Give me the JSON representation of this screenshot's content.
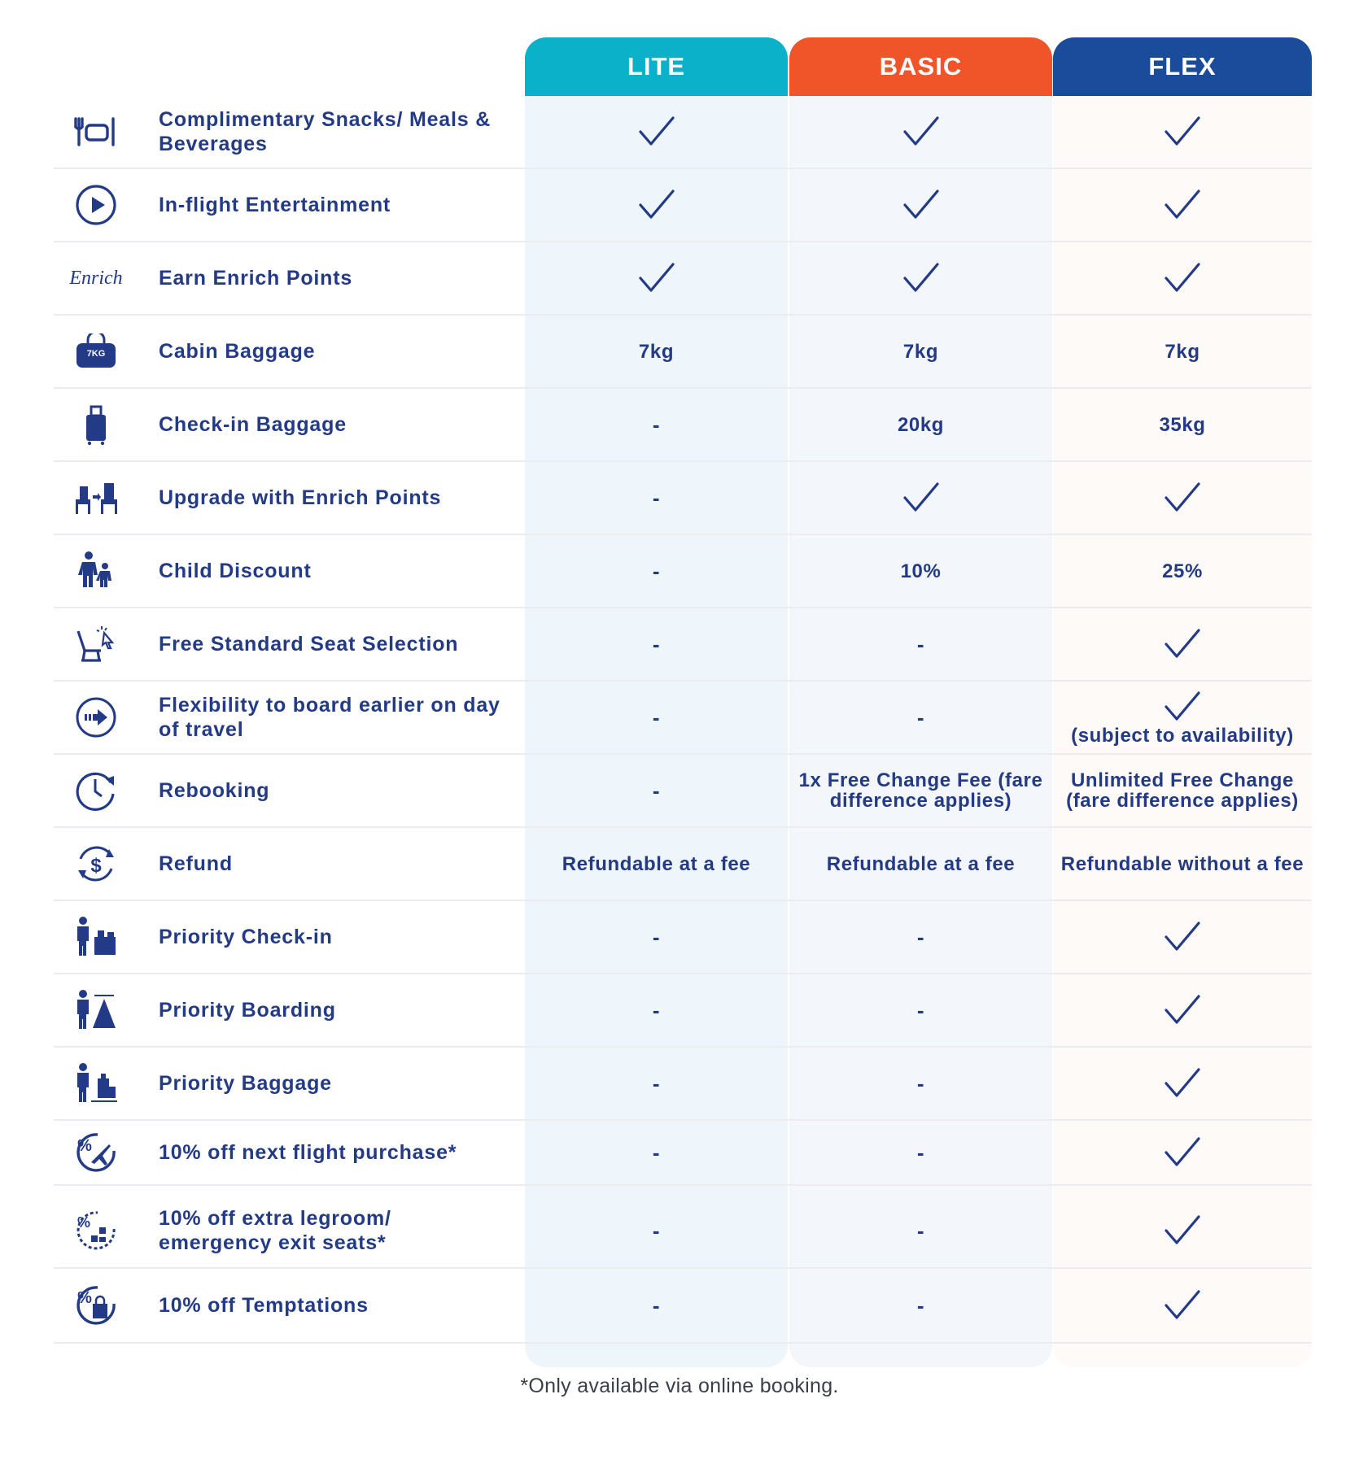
{
  "columns": [
    {
      "name": "LITE",
      "color": "#0ab1c9"
    },
    {
      "name": "BASIC",
      "color": "#ef5529"
    },
    {
      "name": "FLEX",
      "color": "#1b4c9b"
    }
  ],
  "rows": [
    {
      "icon": "meal-icon",
      "label": "Complimentary Snacks/ Meals & Beverages",
      "lite": {
        "type": "check"
      },
      "basic": {
        "type": "check"
      },
      "flex": {
        "type": "check"
      }
    },
    {
      "icon": "play-icon",
      "label": "In-flight Entertainment",
      "lite": {
        "type": "check"
      },
      "basic": {
        "type": "check"
      },
      "flex": {
        "type": "check"
      }
    },
    {
      "icon": "enrich-logo-icon",
      "icon_text": "Enrich",
      "label": "Earn Enrich Points",
      "lite": {
        "type": "check"
      },
      "basic": {
        "type": "check"
      },
      "flex": {
        "type": "check"
      }
    },
    {
      "icon": "cabin-bag-icon",
      "icon_text": "7KG",
      "label": "Cabin Baggage",
      "lite": {
        "type": "text",
        "value": "7kg"
      },
      "basic": {
        "type": "text",
        "value": "7kg"
      },
      "flex": {
        "type": "text",
        "value": "7kg"
      }
    },
    {
      "icon": "suitcase-icon",
      "label": "Check-in Baggage",
      "lite": {
        "type": "text",
        "value": "-"
      },
      "basic": {
        "type": "text",
        "value": "20kg"
      },
      "flex": {
        "type": "text",
        "value": "35kg"
      }
    },
    {
      "icon": "seat-upgrade-icon",
      "label": "Upgrade with Enrich Points",
      "lite": {
        "type": "text",
        "value": "-"
      },
      "basic": {
        "type": "check"
      },
      "flex": {
        "type": "check"
      }
    },
    {
      "icon": "child-icon",
      "label": "Child Discount",
      "lite": {
        "type": "text",
        "value": "-"
      },
      "basic": {
        "type": "text",
        "value": "10%"
      },
      "flex": {
        "type": "text",
        "value": "25%"
      }
    },
    {
      "icon": "seat-select-icon",
      "label": "Free Standard Seat Selection",
      "lite": {
        "type": "text",
        "value": "-"
      },
      "basic": {
        "type": "text",
        "value": "-"
      },
      "flex": {
        "type": "check"
      }
    },
    {
      "icon": "arrow-circle-icon",
      "label": "Flexibility to board earlier on day of travel",
      "lite": {
        "type": "text",
        "value": "-"
      },
      "basic": {
        "type": "text",
        "value": "-"
      },
      "flex": {
        "type": "check",
        "note": "(subject to availability)"
      }
    },
    {
      "icon": "clock-rebook-icon",
      "label": "Rebooking",
      "lite": {
        "type": "text",
        "value": "-"
      },
      "basic": {
        "type": "text",
        "value": "1x Free Change Fee (fare difference applies)"
      },
      "flex": {
        "type": "text",
        "value": "Unlimited Free Change (fare difference applies)"
      }
    },
    {
      "icon": "refund-dollar-icon",
      "label": "Refund",
      "lite": {
        "type": "text",
        "value": "Refundable at a fee"
      },
      "basic": {
        "type": "text",
        "value": "Refundable at a fee"
      },
      "flex": {
        "type": "text",
        "value": "Refundable without a fee"
      }
    },
    {
      "icon": "priority-checkin-icon",
      "label": "Priority Check-in",
      "lite": {
        "type": "text",
        "value": "-"
      },
      "basic": {
        "type": "text",
        "value": "-"
      },
      "flex": {
        "type": "check"
      }
    },
    {
      "icon": "priority-boarding-icon",
      "label": "Priority Boarding",
      "lite": {
        "type": "text",
        "value": "-"
      },
      "basic": {
        "type": "text",
        "value": "-"
      },
      "flex": {
        "type": "check"
      }
    },
    {
      "icon": "priority-baggage-icon",
      "label": "Priority Baggage",
      "lite": {
        "type": "text",
        "value": "-"
      },
      "basic": {
        "type": "text",
        "value": "-"
      },
      "flex": {
        "type": "check"
      }
    },
    {
      "icon": "discount-flight-icon",
      "label": "10% off next flight purchase*",
      "lite": {
        "type": "text",
        "value": "-"
      },
      "basic": {
        "type": "text",
        "value": "-"
      },
      "flex": {
        "type": "check"
      }
    },
    {
      "icon": "discount-seat-icon",
      "label": "10% off extra legroom/ emergency exit seats*",
      "lite": {
        "type": "text",
        "value": "-"
      },
      "basic": {
        "type": "text",
        "value": "-"
      },
      "flex": {
        "type": "check"
      }
    },
    {
      "icon": "discount-shopping-icon",
      "label": "10% off Temptations",
      "lite": {
        "type": "text",
        "value": "-"
      },
      "basic": {
        "type": "text",
        "value": "-"
      },
      "flex": {
        "type": "check"
      }
    }
  ],
  "footnote": "*Only available via online booking."
}
